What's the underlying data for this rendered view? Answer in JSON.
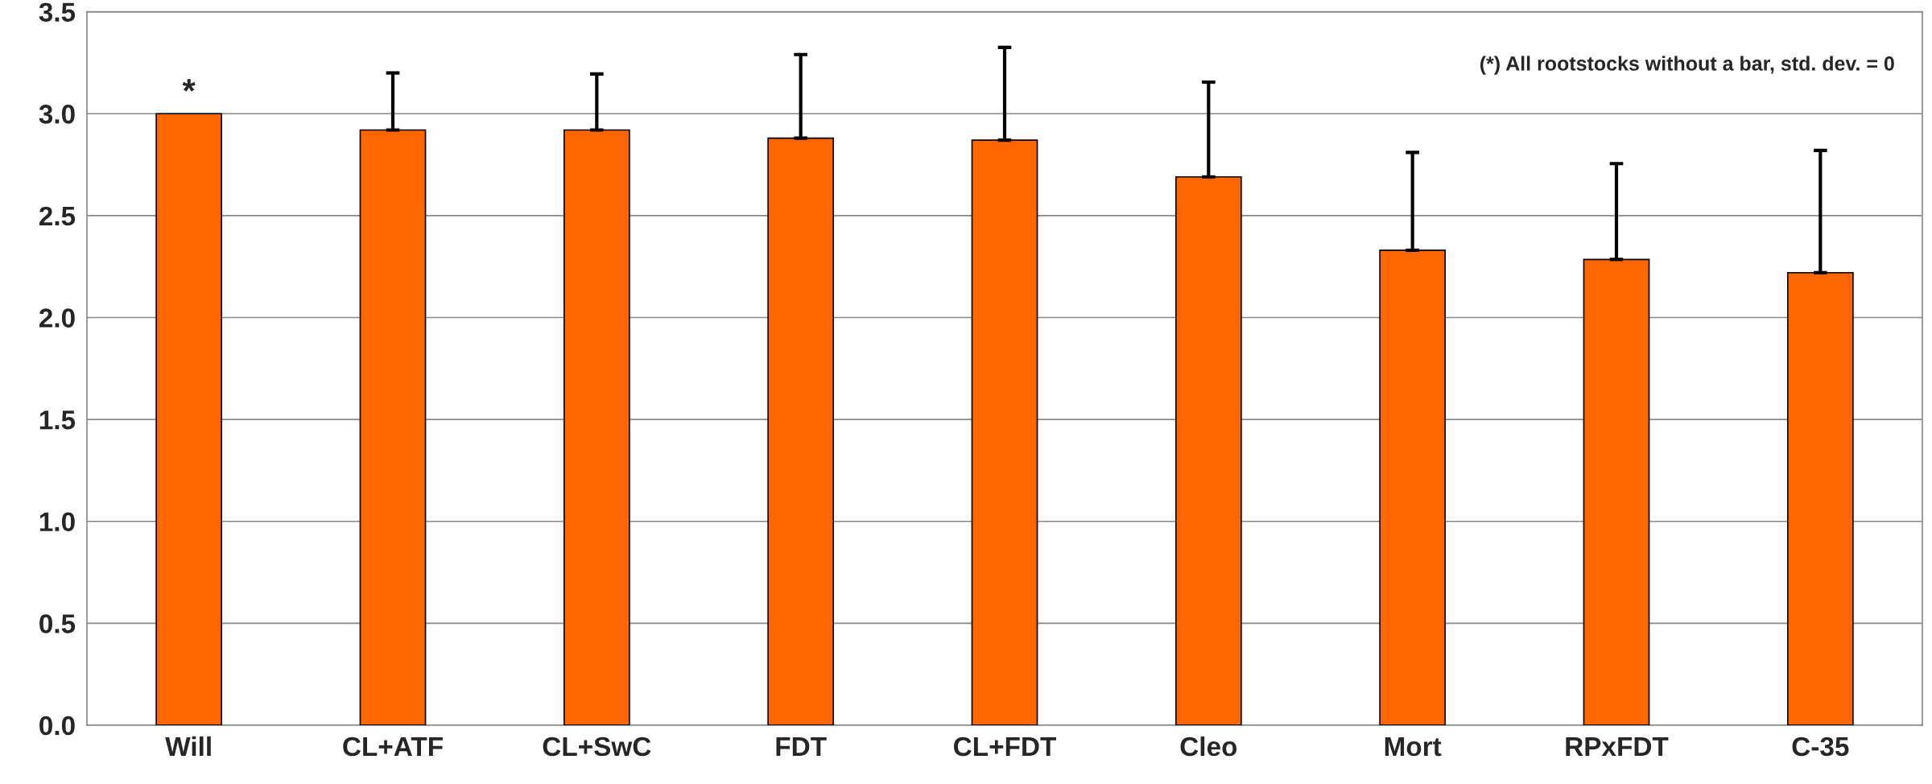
{
  "chart_data": {
    "type": "bar",
    "categories": [
      "Will",
      "CL+ATF",
      "CL+SwC",
      "FDT",
      "CL+FDT",
      "Cleo",
      "Mort",
      "RPxFDT",
      "C-35"
    ],
    "values": [
      3.0,
      2.92,
      2.92,
      2.88,
      2.87,
      2.69,
      2.33,
      2.285,
      2.22
    ],
    "errors": [
      null,
      [
        2.92,
        3.2
      ],
      [
        2.92,
        3.195
      ],
      [
        2.88,
        3.29
      ],
      [
        2.87,
        3.325
      ],
      [
        2.69,
        3.155
      ],
      [
        2.33,
        2.81
      ],
      [
        2.285,
        2.755
      ],
      [
        2.22,
        2.82
      ]
    ],
    "color": "#ff6600",
    "ylim": [
      0,
      3.5
    ],
    "yticks": [
      {
        "value": 0,
        "label": "0.0"
      },
      {
        "value": 0.5,
        "label": "0.5"
      },
      {
        "value": 1,
        "label": "1.0"
      },
      {
        "value": 1.5,
        "label": "1.5"
      },
      {
        "value": 2,
        "label": "2.0"
      },
      {
        "value": 2.5,
        "label": "2.5"
      },
      {
        "value": 3,
        "label": "3.0"
      },
      {
        "value": 3.5,
        "label": "3.5"
      }
    ],
    "grid": "y",
    "annotations": [
      {
        "text": "*",
        "x": "Will",
        "y": 3.0
      },
      "(*) All rootstocks without a bar, std. dev. = 0"
    ]
  }
}
